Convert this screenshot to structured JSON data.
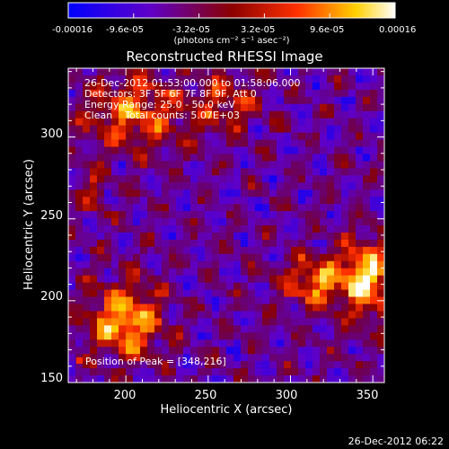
{
  "chart_data": {
    "type": "heatmap",
    "title": "Reconstructed RHESSI Image",
    "xlabel": "Heliocentric X (arcsec)",
    "ylabel": "Heliocentric Y (arcsec)",
    "xlim": [
      165,
      357
    ],
    "ylim": [
      150,
      342
    ],
    "x_ticks": [
      200,
      250,
      300,
      350
    ],
    "y_ticks": [
      150,
      200,
      250,
      300
    ],
    "colorbar": {
      "min": -0.00016,
      "max": 0.00016,
      "tick_labels": [
        "-0.00016",
        "-9.6e-05",
        "-3.2e-05",
        "3.2e-05",
        "9.6e-05",
        "0.00016"
      ],
      "unit_label": "(photons cm⁻² s⁻¹ asec⁻²)",
      "colors": [
        "#0000ff",
        "#5f00c8",
        "#8b0000",
        "#ff3000",
        "#ffd000",
        "#ffffff"
      ]
    },
    "annotations": [
      "26-Dec-2012 01:53:00.000 to 01:58:06.000",
      "Detectors: 3F 5F 6F 7F 8F 9F, Att 0",
      "Energy Range: 25.0 - 50.0 keV",
      "Clean    Total counts: 5.07E+03"
    ],
    "peak_label": "Position of Peak = [348,216]",
    "peak_position": [
      348,
      216
    ],
    "grid": false
  },
  "footer": {
    "timestamp": "26-Dec-2012 06:22"
  }
}
